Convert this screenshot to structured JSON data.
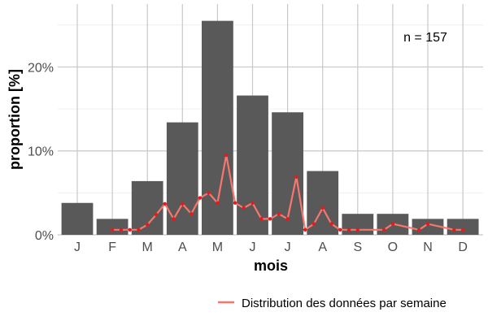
{
  "chart_data": {
    "type": "bar",
    "xlabel": "mois",
    "ylabel": "proportion [%]",
    "ylim": [
      0,
      27.5
    ],
    "yticks": [
      0,
      10,
      20
    ],
    "ytick_labels": [
      "0%",
      "10%",
      "20%"
    ],
    "categories": [
      "J",
      "F",
      "M",
      "A",
      "M",
      "J",
      "J",
      "A",
      "S",
      "O",
      "N",
      "D"
    ],
    "values": [
      3.8,
      1.9,
      6.4,
      13.4,
      25.5,
      16.6,
      14.6,
      7.6,
      2.5,
      2.5,
      1.9,
      1.9
    ],
    "bar_color": "#595959",
    "annotation": "n = 157",
    "grid": true,
    "legend_position": "bottom-right",
    "line_series": {
      "name": "Distribution des données par semaine",
      "color": "#f8766d",
      "point_color": "#e41a1c",
      "x": [
        2.0,
        2.25,
        2.5,
        2.75,
        3.0,
        3.25,
        3.5,
        3.75,
        4.0,
        4.25,
        4.5,
        4.75,
        5.0,
        5.25,
        5.5,
        5.75,
        6.0,
        6.25,
        6.5,
        6.75,
        7.0,
        7.25,
        7.5,
        7.75,
        8.0,
        8.25,
        8.5,
        8.75,
        9.0,
        9.75,
        10.0,
        10.75,
        11.0,
        11.75,
        12.0
      ],
      "y": [
        0.6,
        0.6,
        0.6,
        0.6,
        1.2,
        2.4,
        3.7,
        1.9,
        3.7,
        2.5,
        4.4,
        5.0,
        3.8,
        9.5,
        3.8,
        3.2,
        3.8,
        1.9,
        1.9,
        2.5,
        1.9,
        6.9,
        0.6,
        1.3,
        3.2,
        1.3,
        0.6,
        0.6,
        0.6,
        0.6,
        1.3,
        0.6,
        1.3,
        0.6,
        0.6
      ]
    }
  }
}
